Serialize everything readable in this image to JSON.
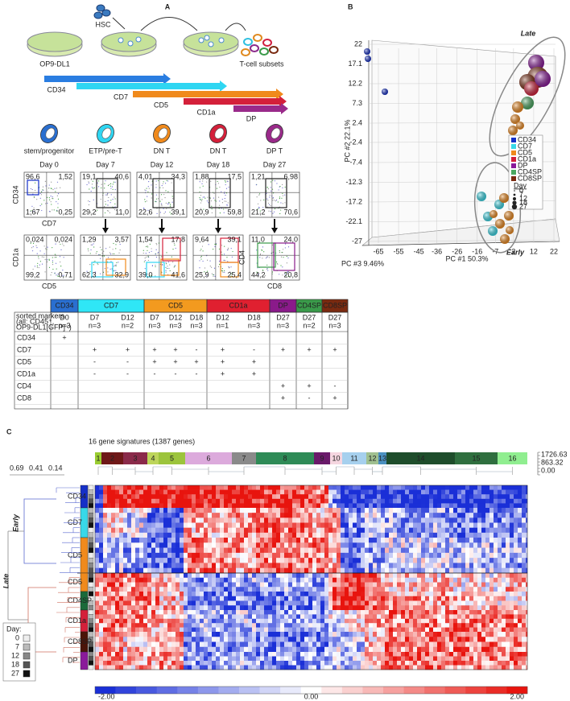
{
  "panel_a": {
    "label": "A",
    "hsc": "HSC",
    "feeder": "OP9-DL1",
    "product": "T-cell subsets",
    "arrows": [
      {
        "label": "CD34",
        "color": "#2a7de1"
      },
      {
        "label": "CD7",
        "color": "#2fd6f2"
      },
      {
        "label": "CD5",
        "color": "#f08a1c"
      },
      {
        "label": "CD1a",
        "color": "#d4203a"
      },
      {
        "label": "DP",
        "color": "#9a2a8a"
      }
    ],
    "stages": [
      {
        "cell": "stem/progenitor",
        "day": "Day 0",
        "color": "#2a6fd0"
      },
      {
        "cell": "ETP/pre-T",
        "day": "Day 7",
        "color": "#2fd6f2"
      },
      {
        "cell": "DN T",
        "day": "Day 12",
        "color": "#f08a1c"
      },
      {
        "cell": "DN T",
        "day": "Day 18",
        "color": "#d4203a"
      },
      {
        "cell": "DP T",
        "day": "Day 27",
        "color": "#9a2a8a"
      }
    ],
    "top_axes": {
      "y": "CD34",
      "x": "CD7"
    },
    "bottom_axes": {
      "y": "CD1a",
      "x": "CD5"
    },
    "last_bottom_axes": {
      "y": "CD4",
      "x": "CD8"
    },
    "top_quadrants": [
      [
        "96,6",
        "1,52",
        "1,67",
        "0,25"
      ],
      [
        "19,1",
        "40,6",
        "29,2",
        "11,0"
      ],
      [
        "4,01",
        "34,3",
        "22,6",
        "39,1"
      ],
      [
        "1,88",
        "17,5",
        "20,9",
        "59,8"
      ],
      [
        "1,21",
        "6,98",
        "21,2",
        "70,6"
      ]
    ],
    "bottom_quadrants": [
      [
        "0,024",
        "0,024",
        "99,2",
        "0,71"
      ],
      [
        "1,29",
        "3,57",
        "62,3",
        "32,9"
      ],
      [
        "1,54",
        "17,8",
        "39,0",
        "41,6"
      ],
      [
        "9,64",
        "39,1",
        "25,9",
        "25,4"
      ],
      [
        "11,0",
        "24,0",
        "44,2",
        "20,8"
      ]
    ]
  },
  "table": {
    "corner": [
      "sorted markers",
      "(all: CD45⁺,",
      "OP9-DL1[GFP]⁻)"
    ],
    "groups": [
      {
        "name": "CD34",
        "color": "#2a6fd0",
        "samples": [
          [
            "D0",
            "n=3"
          ]
        ]
      },
      {
        "name": "CD7",
        "color": "#2fe6f6",
        "samples": [
          [
            "D7",
            "n=3"
          ],
          [
            "D12",
            "n=2"
          ]
        ]
      },
      {
        "name": "CD5",
        "color": "#f39a1f",
        "samples": [
          [
            "D7",
            "n=3"
          ],
          [
            "D12",
            "n=3"
          ],
          [
            "D18",
            "n=3"
          ]
        ]
      },
      {
        "name": "CD1a",
        "color": "#e02030",
        "samples": [
          [
            "D12",
            "n=1"
          ],
          [
            "D18",
            "n=3"
          ]
        ]
      },
      {
        "name": "DP",
        "color": "#8a1a8a",
        "samples": [
          [
            "D27",
            "n=3"
          ]
        ]
      },
      {
        "name": "CD4SP",
        "color": "#3a9a4a",
        "samples": [
          [
            "D27",
            "n=2"
          ]
        ]
      },
      {
        "name": "CD8SP",
        "color": "#7a2a10",
        "samples": [
          [
            "D27",
            "n=3"
          ]
        ]
      }
    ],
    "rows": [
      {
        "marker": "CD34",
        "cells": [
          "+",
          null,
          null,
          null,
          null,
          null,
          null,
          null,
          null,
          null,
          null
        ]
      },
      {
        "marker": "CD7",
        "cells": [
          null,
          "+",
          "+",
          "+",
          "+",
          "-",
          "+",
          "-",
          "+",
          "+",
          "+"
        ]
      },
      {
        "marker": "CD5",
        "cells": [
          null,
          "-",
          "-",
          "+",
          "+",
          "+",
          "+",
          "+",
          null,
          null,
          null
        ]
      },
      {
        "marker": "CD1a",
        "cells": [
          null,
          "-",
          "-",
          "-",
          "-",
          "-",
          "+",
          "+",
          null,
          null,
          null
        ]
      },
      {
        "marker": "CD4",
        "cells": [
          null,
          null,
          null,
          null,
          null,
          null,
          null,
          null,
          "+",
          "+",
          "-"
        ]
      },
      {
        "marker": "CD8",
        "cells": [
          null,
          null,
          null,
          null,
          null,
          null,
          null,
          null,
          "+",
          "-",
          "+"
        ]
      }
    ]
  },
  "panel_b": {
    "label": "B",
    "late": "Late",
    "early": "Early",
    "y_title": "PC #2 22.1%",
    "x_title": "PC #1 50.3%",
    "z_title": "PC #3 9.46%",
    "yticks": [
      22,
      17.1,
      12.2,
      7.3,
      2.4,
      -2.4,
      -7.4,
      -12.3,
      -17.2,
      -22.1,
      -27
    ],
    "xticks": [
      -65,
      -55,
      -45,
      -36,
      -26,
      -16,
      -7,
      2,
      12,
      22
    ],
    "legend": [
      {
        "name": "CD34",
        "color": "#1530c8"
      },
      {
        "name": "CD7",
        "color": "#38d8e8"
      },
      {
        "name": "CD5",
        "color": "#f08a1c"
      },
      {
        "name": "CD1a",
        "color": "#d4203a"
      },
      {
        "name": "DP",
        "color": "#8a1a9a"
      },
      {
        "name": "CD4SP",
        "color": "#4aa860"
      },
      {
        "name": "CD8SP",
        "color": "#7a2a10"
      }
    ],
    "size_title": "Day",
    "sizes": [
      "0",
      "7",
      "12",
      "18",
      "27"
    ]
  },
  "panel_c": {
    "label": "C",
    "title": "16 gene signatures (1387 genes)",
    "clusters": [
      {
        "label": "1",
        "color": "#9acd32"
      },
      {
        "label": "2",
        "color": "#6e1818"
      },
      {
        "label": "3",
        "color": "#8a2a4a"
      },
      {
        "label": "4",
        "color": "#bdd55a"
      },
      {
        "label": "5",
        "color": "#9cc43c"
      },
      {
        "label": "6",
        "color": "#dcaadc"
      },
      {
        "label": "7",
        "color": "#8a8a8a"
      },
      {
        "label": "8",
        "color": "#2e8b57"
      },
      {
        "label": "9",
        "color": "#6a1a6a"
      },
      {
        "label": "10",
        "color": "#f5d6e0"
      },
      {
        "label": "11",
        "color": "#a6d0ee"
      },
      {
        "label": "12",
        "color": "#a0c090"
      },
      {
        "label": "13",
        "color": "#4a90c0"
      },
      {
        "label": "14",
        "color": "#1e4d2b"
      },
      {
        "label": "15",
        "color": "#2f6f3f"
      },
      {
        "label": "16",
        "color": "#90ee90"
      }
    ],
    "count_scale": [
      "1726.63",
      "863.32",
      "0.00"
    ],
    "dendro_scale": [
      "0.69",
      "0.41",
      "0.14"
    ],
    "early": "Early",
    "late": "Late",
    "rows": [
      {
        "label": "CD34",
        "color": "#1530c8"
      },
      {
        "label": "CD7",
        "color": "#38d8e8"
      },
      {
        "label": "CD5",
        "color": "#f08a1c"
      },
      {
        "label": "CD5",
        "color": "#f08a1c"
      },
      {
        "label": "CD4SP",
        "color": "#1a6a3a"
      },
      {
        "label": "CD1a",
        "color": "#d4203a"
      },
      {
        "label": "CD8SP",
        "color": "#4a1408"
      },
      {
        "label": "DP",
        "color": "#8a1a9a"
      }
    ],
    "day_legend": {
      "title": "Day:",
      "days": [
        "0",
        "7",
        "12",
        "18",
        "27"
      ]
    },
    "colorbar": [
      "-2.00",
      "0.00",
      "2.00"
    ]
  }
}
